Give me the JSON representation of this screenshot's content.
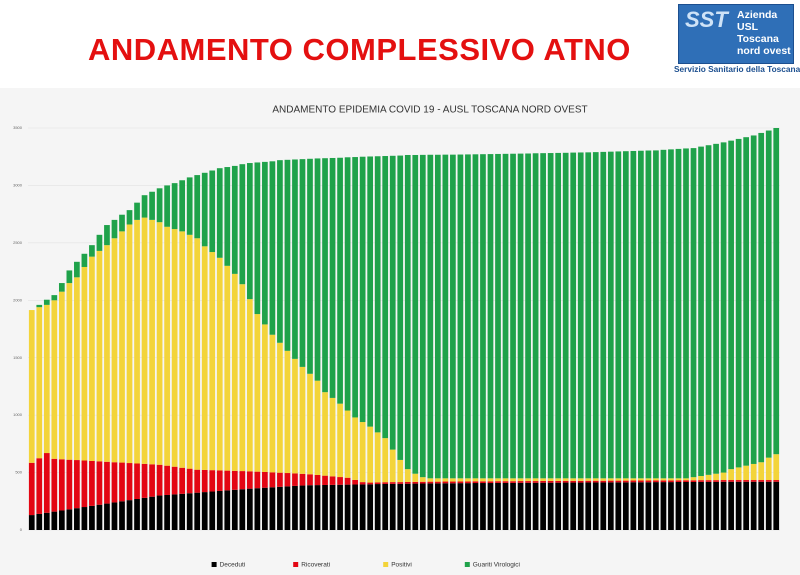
{
  "header": {
    "title": "ANDAMENTO COMPLESSIVO ATNO",
    "logo": {
      "mark": "SST",
      "lines": [
        "Azienda",
        "USL",
        "Toscana",
        "nord ovest"
      ],
      "caption": "Servizio Sanitario della Toscana"
    }
  },
  "chart_data": {
    "type": "stacked_bar",
    "title": "ANDAMENTO EPIDEMIA COVID 19 - AUSL TOSCANA NORD OVEST",
    "ylim": [
      0,
      3500
    ],
    "yticks": [
      0,
      500,
      1000,
      1500,
      2000,
      2500,
      3000,
      3500
    ],
    "grid": true,
    "legend": "bottom",
    "series": [
      {
        "name": "Deceduti",
        "color": "#000000",
        "values": [
          130,
          140,
          150,
          160,
          170,
          180,
          190,
          200,
          210,
          220,
          230,
          240,
          250,
          260,
          270,
          280,
          290,
          300,
          305,
          310,
          315,
          320,
          325,
          330,
          335,
          340,
          345,
          350,
          355,
          360,
          364,
          368,
          372,
          376,
          380,
          384,
          387,
          390,
          391,
          392,
          393,
          394,
          395,
          396,
          397,
          398,
          400,
          401,
          402,
          402,
          403,
          404,
          405,
          406,
          406,
          407,
          407,
          408,
          408,
          409,
          409,
          409,
          410,
          410,
          410,
          411,
          411,
          411,
          412,
          412,
          412,
          413,
          413,
          413,
          414,
          414,
          414,
          415,
          415,
          415,
          416,
          416,
          416,
          417,
          417,
          417,
          418,
          418,
          418,
          419,
          419,
          419,
          420,
          420,
          420,
          420,
          420,
          420,
          420,
          420
        ]
      },
      {
        "name": "Ricoverati",
        "color": "#e30613",
        "values": [
          455,
          485,
          520,
          460,
          446,
          432,
          419,
          405,
          391,
          378,
          364,
          350,
          337,
          323,
          309,
          296,
          282,
          268,
          255,
          241,
          227,
          214,
          200,
          193,
          186,
          179,
          172,
          165,
          158,
          151,
          144,
          137,
          130,
          123,
          116,
          109,
          102,
          95,
          88,
          81,
          74,
          67,
          60,
          40,
          20,
          15,
          15,
          15,
          15,
          15,
          15,
          15,
          15,
          15,
          15,
          15,
          15,
          15,
          15,
          15,
          15,
          15,
          15,
          15,
          15,
          15,
          15,
          15,
          15,
          15,
          15,
          15,
          15,
          15,
          15,
          15,
          15,
          15,
          15,
          15,
          15,
          15,
          15,
          15,
          15,
          15,
          15,
          15,
          15,
          15,
          15,
          15,
          15,
          15,
          15,
          15,
          15,
          15,
          15,
          15
        ]
      },
      {
        "name": "Positivi",
        "color": "#f3d43a",
        "values": [
          1330,
          1315,
          1290,
          1380,
          1459,
          1538,
          1591,
          1685,
          1779,
          1832,
          1886,
          1950,
          2013,
          2077,
          2121,
          2144,
          2128,
          2112,
          2080,
          2069,
          2058,
          2036,
          2015,
          1947,
          1899,
          1851,
          1783,
          1715,
          1627,
          1499,
          1372,
          1285,
          1198,
          1131,
          1064,
          997,
          931,
          875,
          821,
          727,
          683,
          639,
          585,
          544,
          523,
          487,
          435,
          384,
          283,
          193,
          112,
          71,
          40,
          29,
          29,
          28,
          28,
          27,
          27,
          26,
          26,
          26,
          25,
          25,
          25,
          24,
          24,
          24,
          23,
          23,
          23,
          22,
          22,
          22,
          21,
          21,
          21,
          20,
          20,
          20,
          19,
          19,
          19,
          18,
          18,
          18,
          17,
          17,
          27,
          36,
          46,
          56,
          65,
          95,
          110,
          125,
          140,
          155,
          195,
          225
        ]
      },
      {
        "name": "Guariti Virologici",
        "color": "#1fa24a",
        "values": [
          0,
          20,
          45,
          45,
          75,
          110,
          135,
          115,
          100,
          140,
          175,
          160,
          145,
          125,
          150,
          195,
          245,
          295,
          360,
          400,
          445,
          500,
          550,
          640,
          710,
          780,
          860,
          940,
          1045,
          1185,
          1320,
          1415,
          1510,
          1590,
          1663,
          1736,
          1809,
          1872,
          1935,
          2037,
          2089,
          2141,
          2205,
          2267,
          2310,
          2352,
          2404,
          2456,
          2558,
          2650,
          2735,
          2775,
          2806,
          2817,
          2817,
          2818,
          2818,
          2819,
          2820,
          2821,
          2822,
          2823,
          2824,
          2825,
          2826,
          2827,
          2828,
          2830,
          2831,
          2832,
          2833,
          2834,
          2836,
          2837,
          2838,
          2840,
          2842,
          2844,
          2846,
          2848,
          2850,
          2852,
          2854,
          2855,
          2860,
          2864,
          2868,
          2872,
          2865,
          2868,
          2870,
          2872,
          2875,
          2860,
          2860,
          2860,
          2860,
          2867,
          2848,
          2840
        ]
      }
    ]
  }
}
